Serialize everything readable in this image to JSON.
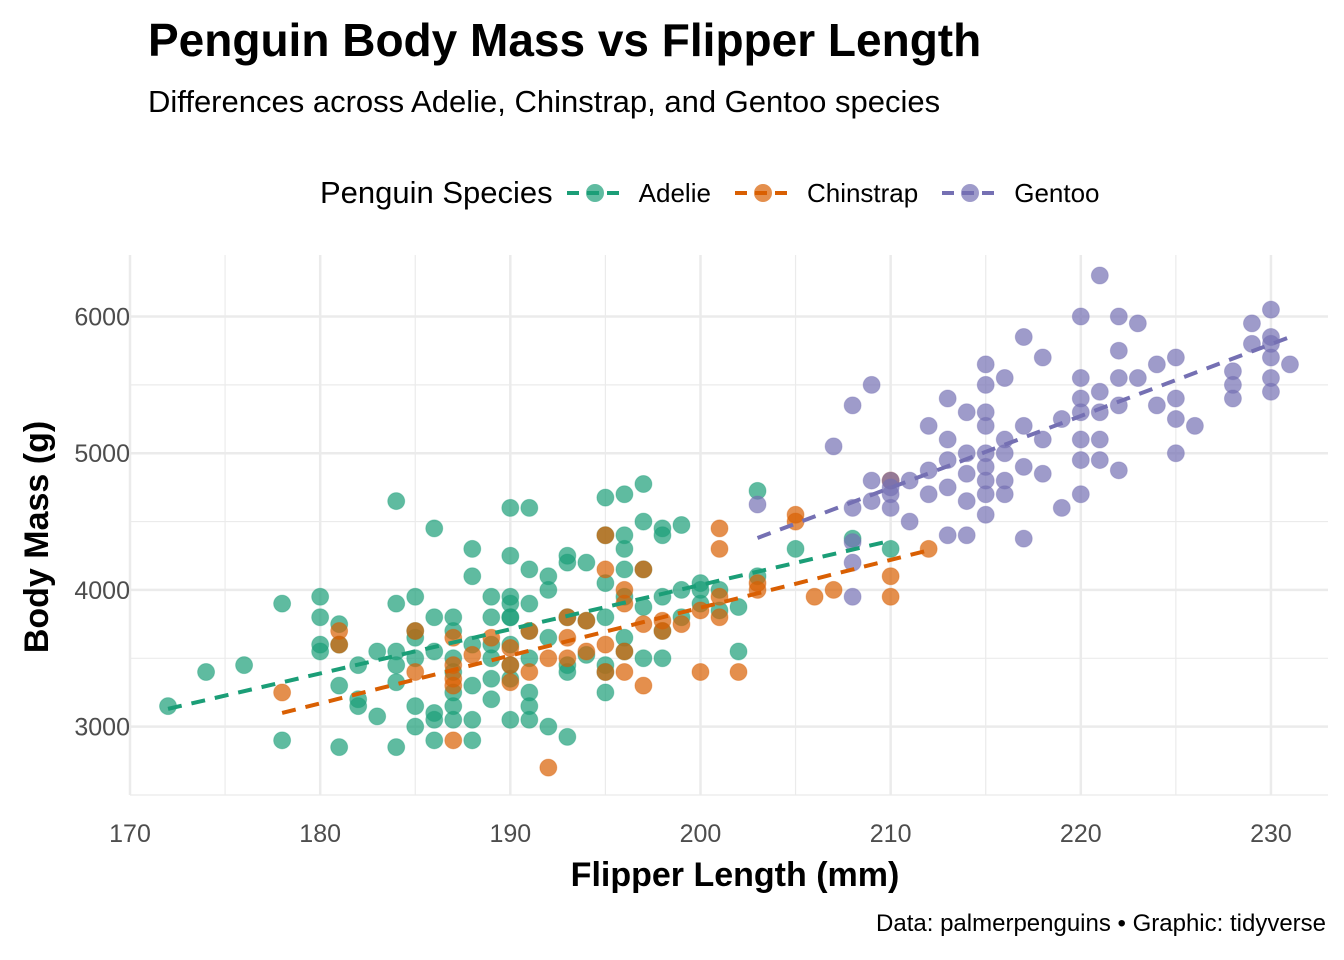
{
  "chart_data": {
    "type": "scatter",
    "title": "Penguin Body Mass vs Flipper Length",
    "subtitle": "Differences across Adelie, Chinstrap, and Gentoo species",
    "xlabel": "Flipper Length (mm)",
    "ylabel": "Body Mass (g)",
    "caption": "Data: palmerpenguins • Graphic: tidyverse",
    "legend_title": "Penguin Species",
    "legend_position": "top",
    "grid": true,
    "xlim": [
      170,
      233
    ],
    "ylim": [
      2500,
      6450
    ],
    "xticks": [
      170,
      180,
      190,
      200,
      210,
      220,
      230
    ],
    "yticks": [
      3000,
      4000,
      5000,
      6000
    ],
    "series": [
      {
        "name": "Adelie",
        "color": "#1b9e77",
        "trend": {
          "x": [
            172,
            210
          ],
          "y": [
            3130,
            4360
          ]
        },
        "points": [
          [
            172,
            3150
          ],
          [
            174,
            3400
          ],
          [
            176,
            3450
          ],
          [
            178,
            3900
          ],
          [
            178,
            2900
          ],
          [
            180,
            3950
          ],
          [
            180,
            3800
          ],
          [
            180,
            3600
          ],
          [
            180,
            3550
          ],
          [
            181,
            3300
          ],
          [
            181,
            3750
          ],
          [
            181,
            3600
          ],
          [
            181,
            2850
          ],
          [
            182,
            3200
          ],
          [
            182,
            3150
          ],
          [
            182,
            3450
          ],
          [
            183,
            3550
          ],
          [
            183,
            3075
          ],
          [
            184,
            4650
          ],
          [
            184,
            3900
          ],
          [
            184,
            3550
          ],
          [
            184,
            3450
          ],
          [
            184,
            3325
          ],
          [
            184,
            2850
          ],
          [
            185,
            3950
          ],
          [
            185,
            3700
          ],
          [
            185,
            3650
          ],
          [
            185,
            3500
          ],
          [
            185,
            3150
          ],
          [
            185,
            3000
          ],
          [
            186,
            4450
          ],
          [
            186,
            3800
          ],
          [
            186,
            3550
          ],
          [
            186,
            3100
          ],
          [
            186,
            2900
          ],
          [
            186,
            3050
          ],
          [
            187,
            3800
          ],
          [
            187,
            3700
          ],
          [
            187,
            3500
          ],
          [
            187,
            3400
          ],
          [
            187,
            3250
          ],
          [
            187,
            3150
          ],
          [
            187,
            3050
          ],
          [
            188,
            4300
          ],
          [
            188,
            4100
          ],
          [
            188,
            3600
          ],
          [
            188,
            3300
          ],
          [
            188,
            3050
          ],
          [
            188,
            2900
          ],
          [
            189,
            3950
          ],
          [
            189,
            3800
          ],
          [
            189,
            3600
          ],
          [
            189,
            3500
          ],
          [
            189,
            3350
          ],
          [
            189,
            3200
          ],
          [
            190,
            4600
          ],
          [
            190,
            4250
          ],
          [
            190,
            3950
          ],
          [
            190,
            3900
          ],
          [
            190,
            3800
          ],
          [
            190,
            3600
          ],
          [
            190,
            3450
          ],
          [
            190,
            3350
          ],
          [
            190,
            3050
          ],
          [
            190,
            3800
          ],
          [
            191,
            4600
          ],
          [
            191,
            4150
          ],
          [
            191,
            3900
          ],
          [
            191,
            3700
          ],
          [
            191,
            3500
          ],
          [
            191,
            3250
          ],
          [
            191,
            3150
          ],
          [
            191,
            3050
          ],
          [
            192,
            4100
          ],
          [
            192,
            4000
          ],
          [
            192,
            3650
          ],
          [
            192,
            3000
          ],
          [
            193,
            4250
          ],
          [
            193,
            4200
          ],
          [
            193,
            3800
          ],
          [
            193,
            3450
          ],
          [
            193,
            3400
          ],
          [
            193,
            2925
          ],
          [
            194,
            4200
          ],
          [
            194,
            3775
          ],
          [
            194,
            3525
          ],
          [
            195,
            4675
          ],
          [
            195,
            4400
          ],
          [
            195,
            4050
          ],
          [
            195,
            3800
          ],
          [
            195,
            3450
          ],
          [
            195,
            3400
          ],
          [
            195,
            3250
          ],
          [
            196,
            4700
          ],
          [
            196,
            4400
          ],
          [
            196,
            4300
          ],
          [
            196,
            4150
          ],
          [
            196,
            3950
          ],
          [
            196,
            3650
          ],
          [
            196,
            3550
          ],
          [
            197,
            4775
          ],
          [
            197,
            4500
          ],
          [
            197,
            4150
          ],
          [
            197,
            3875
          ],
          [
            197,
            3500
          ],
          [
            198,
            4450
          ],
          [
            198,
            4400
          ],
          [
            198,
            3950
          ],
          [
            198,
            3700
          ],
          [
            198,
            3500
          ],
          [
            199,
            4475
          ],
          [
            199,
            4000
          ],
          [
            199,
            3800
          ],
          [
            200,
            4050
          ],
          [
            200,
            4000
          ],
          [
            200,
            3900
          ],
          [
            201,
            3850
          ],
          [
            201,
            4000
          ],
          [
            202,
            3875
          ],
          [
            202,
            3550
          ],
          [
            203,
            4725
          ],
          [
            203,
            4100
          ],
          [
            205,
            4300
          ],
          [
            208,
            4375
          ],
          [
            210,
            4300
          ]
        ]
      },
      {
        "name": "Chinstrap",
        "color": "#d95f02",
        "trend": {
          "x": [
            178,
            212
          ],
          "y": [
            3100,
            4290
          ]
        },
        "points": [
          [
            178,
            3250
          ],
          [
            181,
            3700
          ],
          [
            181,
            3600
          ],
          [
            185,
            3700
          ],
          [
            185,
            3400
          ],
          [
            187,
            3650
          ],
          [
            187,
            3450
          ],
          [
            187,
            3350
          ],
          [
            187,
            3300
          ],
          [
            187,
            2900
          ],
          [
            188,
            3525
          ],
          [
            189,
            3650
          ],
          [
            190,
            3575
          ],
          [
            190,
            3450
          ],
          [
            190,
            3325
          ],
          [
            191,
            3700
          ],
          [
            191,
            3400
          ],
          [
            192,
            3500
          ],
          [
            192,
            2700
          ],
          [
            193,
            3800
          ],
          [
            193,
            3650
          ],
          [
            193,
            3500
          ],
          [
            194,
            3775
          ],
          [
            194,
            3550
          ],
          [
            195,
            4400
          ],
          [
            195,
            4150
          ],
          [
            195,
            3600
          ],
          [
            195,
            3400
          ],
          [
            196,
            4000
          ],
          [
            196,
            3900
          ],
          [
            196,
            3550
          ],
          [
            196,
            3400
          ],
          [
            197,
            4150
          ],
          [
            197,
            3750
          ],
          [
            197,
            3300
          ],
          [
            198,
            3775
          ],
          [
            198,
            3700
          ],
          [
            199,
            3750
          ],
          [
            200,
            3850
          ],
          [
            200,
            3400
          ],
          [
            201,
            4450
          ],
          [
            201,
            4300
          ],
          [
            201,
            3950
          ],
          [
            201,
            3800
          ],
          [
            202,
            3400
          ],
          [
            203,
            4050
          ],
          [
            203,
            4000
          ],
          [
            205,
            4550
          ],
          [
            205,
            4500
          ],
          [
            206,
            3950
          ],
          [
            207,
            4000
          ],
          [
            210,
            4800
          ],
          [
            210,
            4100
          ],
          [
            210,
            3950
          ],
          [
            212,
            4300
          ]
        ]
      },
      {
        "name": "Gentoo",
        "color": "#7570b3",
        "trend": {
          "x": [
            203,
            231
          ],
          "y": [
            4380,
            5850
          ]
        },
        "points": [
          [
            203,
            4625
          ],
          [
            207,
            5050
          ],
          [
            208,
            5350
          ],
          [
            208,
            4600
          ],
          [
            208,
            4350
          ],
          [
            208,
            4200
          ],
          [
            208,
            3950
          ],
          [
            209,
            5500
          ],
          [
            209,
            4800
          ],
          [
            209,
            4650
          ],
          [
            210,
            4700
          ],
          [
            210,
            4600
          ],
          [
            210,
            4750
          ],
          [
            210,
            4800
          ],
          [
            211,
            4800
          ],
          [
            211,
            4500
          ],
          [
            212,
            5200
          ],
          [
            212,
            4875
          ],
          [
            212,
            4700
          ],
          [
            213,
            5400
          ],
          [
            213,
            5100
          ],
          [
            213,
            4950
          ],
          [
            213,
            4750
          ],
          [
            213,
            4400
          ],
          [
            214,
            5300
          ],
          [
            214,
            5000
          ],
          [
            214,
            4850
          ],
          [
            214,
            4650
          ],
          [
            214,
            4400
          ],
          [
            215,
            5650
          ],
          [
            215,
            5500
          ],
          [
            215,
            5300
          ],
          [
            215,
            5200
          ],
          [
            215,
            5000
          ],
          [
            215,
            4900
          ],
          [
            215,
            4800
          ],
          [
            215,
            4700
          ],
          [
            215,
            4550
          ],
          [
            216,
            5550
          ],
          [
            216,
            5100
          ],
          [
            216,
            5000
          ],
          [
            216,
            4800
          ],
          [
            216,
            4700
          ],
          [
            217,
            5850
          ],
          [
            217,
            5200
          ],
          [
            217,
            4900
          ],
          [
            217,
            4375
          ],
          [
            218,
            5700
          ],
          [
            218,
            5100
          ],
          [
            218,
            4850
          ],
          [
            219,
            5250
          ],
          [
            219,
            4600
          ],
          [
            220,
            6000
          ],
          [
            220,
            5550
          ],
          [
            220,
            5400
          ],
          [
            220,
            5300
          ],
          [
            220,
            5100
          ],
          [
            220,
            4950
          ],
          [
            220,
            4700
          ],
          [
            221,
            6300
          ],
          [
            221,
            5450
          ],
          [
            221,
            5300
          ],
          [
            221,
            5100
          ],
          [
            221,
            4950
          ],
          [
            222,
            6000
          ],
          [
            222,
            5750
          ],
          [
            222,
            5550
          ],
          [
            222,
            5350
          ],
          [
            222,
            4875
          ],
          [
            223,
            5950
          ],
          [
            223,
            5550
          ],
          [
            224,
            5650
          ],
          [
            224,
            5350
          ],
          [
            225,
            5700
          ],
          [
            225,
            5400
          ],
          [
            225,
            5250
          ],
          [
            225,
            5000
          ],
          [
            226,
            5200
          ],
          [
            228,
            5600
          ],
          [
            228,
            5500
          ],
          [
            228,
            5400
          ],
          [
            229,
            5950
          ],
          [
            229,
            5800
          ],
          [
            230,
            6050
          ],
          [
            230,
            5850
          ],
          [
            230,
            5700
          ],
          [
            230,
            5550
          ],
          [
            230,
            5450
          ],
          [
            230,
            5800
          ],
          [
            231,
            5650
          ]
        ]
      }
    ]
  }
}
